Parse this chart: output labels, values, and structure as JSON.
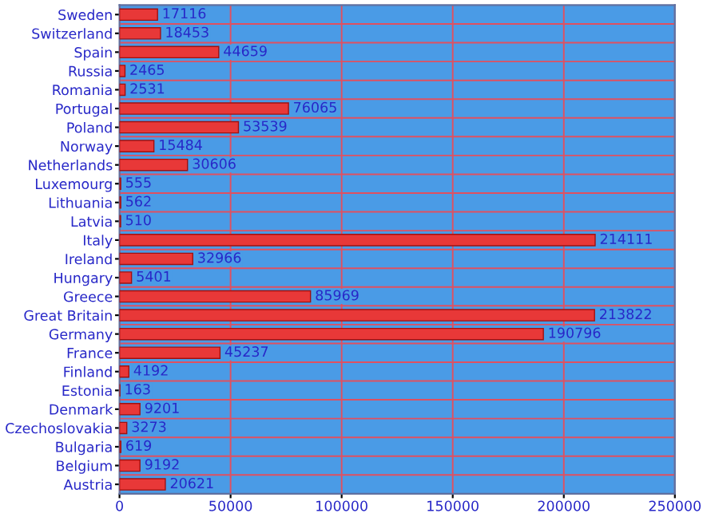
{
  "chart_data": {
    "type": "bar",
    "orientation": "horizontal",
    "categories": [
      "Sweden",
      "Switzerland",
      "Spain",
      "Russia",
      "Romania",
      "Portugal",
      "Poland",
      "Norway",
      "Netherlands",
      "Luxemourg",
      "Lithuania",
      "Latvia",
      "Italy",
      "Ireland",
      "Hungary",
      "Greece",
      "Great Britain",
      "Germany",
      "France",
      "Finland",
      "Estonia",
      "Denmark",
      "Czechoslovakia",
      "Bulgaria",
      "Belgium",
      "Austria"
    ],
    "values": [
      17116,
      18453,
      44659,
      2465,
      2531,
      76065,
      53539,
      15484,
      30606,
      555,
      562,
      510,
      214111,
      32966,
      5401,
      85969,
      213822,
      190796,
      45237,
      4192,
      163,
      9201,
      3273,
      619,
      9192,
      20621
    ],
    "color": "#e83838",
    "xlim": [
      0,
      250000
    ],
    "xticks": [
      0,
      50000,
      100000,
      150000,
      200000,
      250000
    ],
    "grid": true,
    "data_labels": true
  }
}
